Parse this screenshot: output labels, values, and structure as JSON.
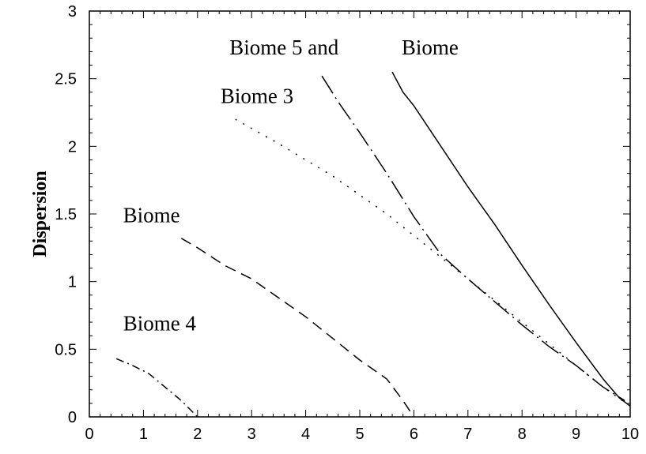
{
  "chart_data": {
    "type": "line",
    "title": "",
    "xlabel": "",
    "ylabel": "Dispersion",
    "xlim": [
      0,
      10
    ],
    "ylim": [
      0,
      3
    ],
    "xticks": [
      "0",
      "1",
      "2",
      "3",
      "4",
      "5",
      "6",
      "7",
      "8",
      "9",
      "10"
    ],
    "yticks": [
      "0",
      "0.5",
      "1",
      "1.5",
      "2",
      "2.5",
      "3"
    ],
    "grid": false,
    "legend": "none",
    "annotations": [
      {
        "text": "Biome 5 and",
        "x": 3.6,
        "y": 2.68
      },
      {
        "text": "Biome",
        "x": 6.3,
        "y": 2.68
      },
      {
        "text": "Biome 3",
        "x": 3.1,
        "y": 2.32
      },
      {
        "text": "Biome",
        "x": 1.15,
        "y": 1.44
      },
      {
        "text": "Biome 4",
        "x": 1.3,
        "y": 0.64
      }
    ],
    "series": [
      {
        "style": "solid",
        "x": [
          5.6,
          5.8,
          6.0,
          6.5,
          7.0,
          7.5,
          8.0,
          8.5,
          9.0,
          9.5,
          9.8,
          10.0
        ],
        "y": [
          2.55,
          2.4,
          2.3,
          2.0,
          1.7,
          1.42,
          1.12,
          0.83,
          0.55,
          0.28,
          0.14,
          0.08
        ]
      },
      {
        "style": "long-dash-dot",
        "x": [
          4.3,
          4.6,
          5.0,
          5.5,
          6.0,
          6.5,
          7.0,
          7.5,
          8.0,
          8.5,
          9.0,
          9.5,
          9.9
        ],
        "y": [
          2.52,
          2.33,
          2.1,
          1.8,
          1.48,
          1.2,
          1.02,
          0.85,
          0.68,
          0.52,
          0.38,
          0.22,
          0.12
        ]
      },
      {
        "style": "dotted",
        "x": [
          2.7,
          3.5,
          4.5,
          5.5,
          6.5,
          7.5,
          8.5,
          9.5,
          10.0
        ],
        "y": [
          2.2,
          2.02,
          1.78,
          1.5,
          1.18,
          0.86,
          0.54,
          0.22,
          0.08
        ]
      },
      {
        "style": "dashed",
        "x": [
          1.7,
          2.0,
          2.5,
          3.0,
          3.5,
          4.0,
          4.5,
          5.0,
          5.5,
          5.8,
          6.0
        ],
        "y": [
          1.32,
          1.25,
          1.12,
          1.02,
          0.88,
          0.74,
          0.58,
          0.42,
          0.28,
          0.12,
          0.0
        ]
      },
      {
        "style": "dash-dot",
        "x": [
          0.5,
          0.8,
          1.1,
          1.4,
          1.7,
          1.9,
          2.0
        ],
        "y": [
          0.43,
          0.38,
          0.32,
          0.22,
          0.12,
          0.04,
          0.0
        ]
      }
    ]
  }
}
